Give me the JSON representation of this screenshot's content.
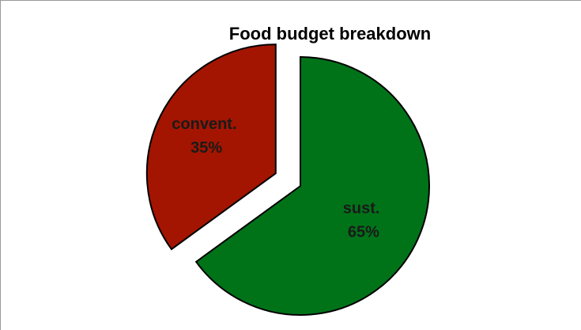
{
  "chart_data": {
    "type": "pie",
    "title": "Food budget breakdown",
    "slices": [
      {
        "label": "sust.",
        "value": 65,
        "value_label": "65%",
        "color": "#007319",
        "exploded": false
      },
      {
        "label": "convent.",
        "value": 35,
        "value_label": "35%",
        "color": "#a31500",
        "exploded": true
      }
    ]
  }
}
